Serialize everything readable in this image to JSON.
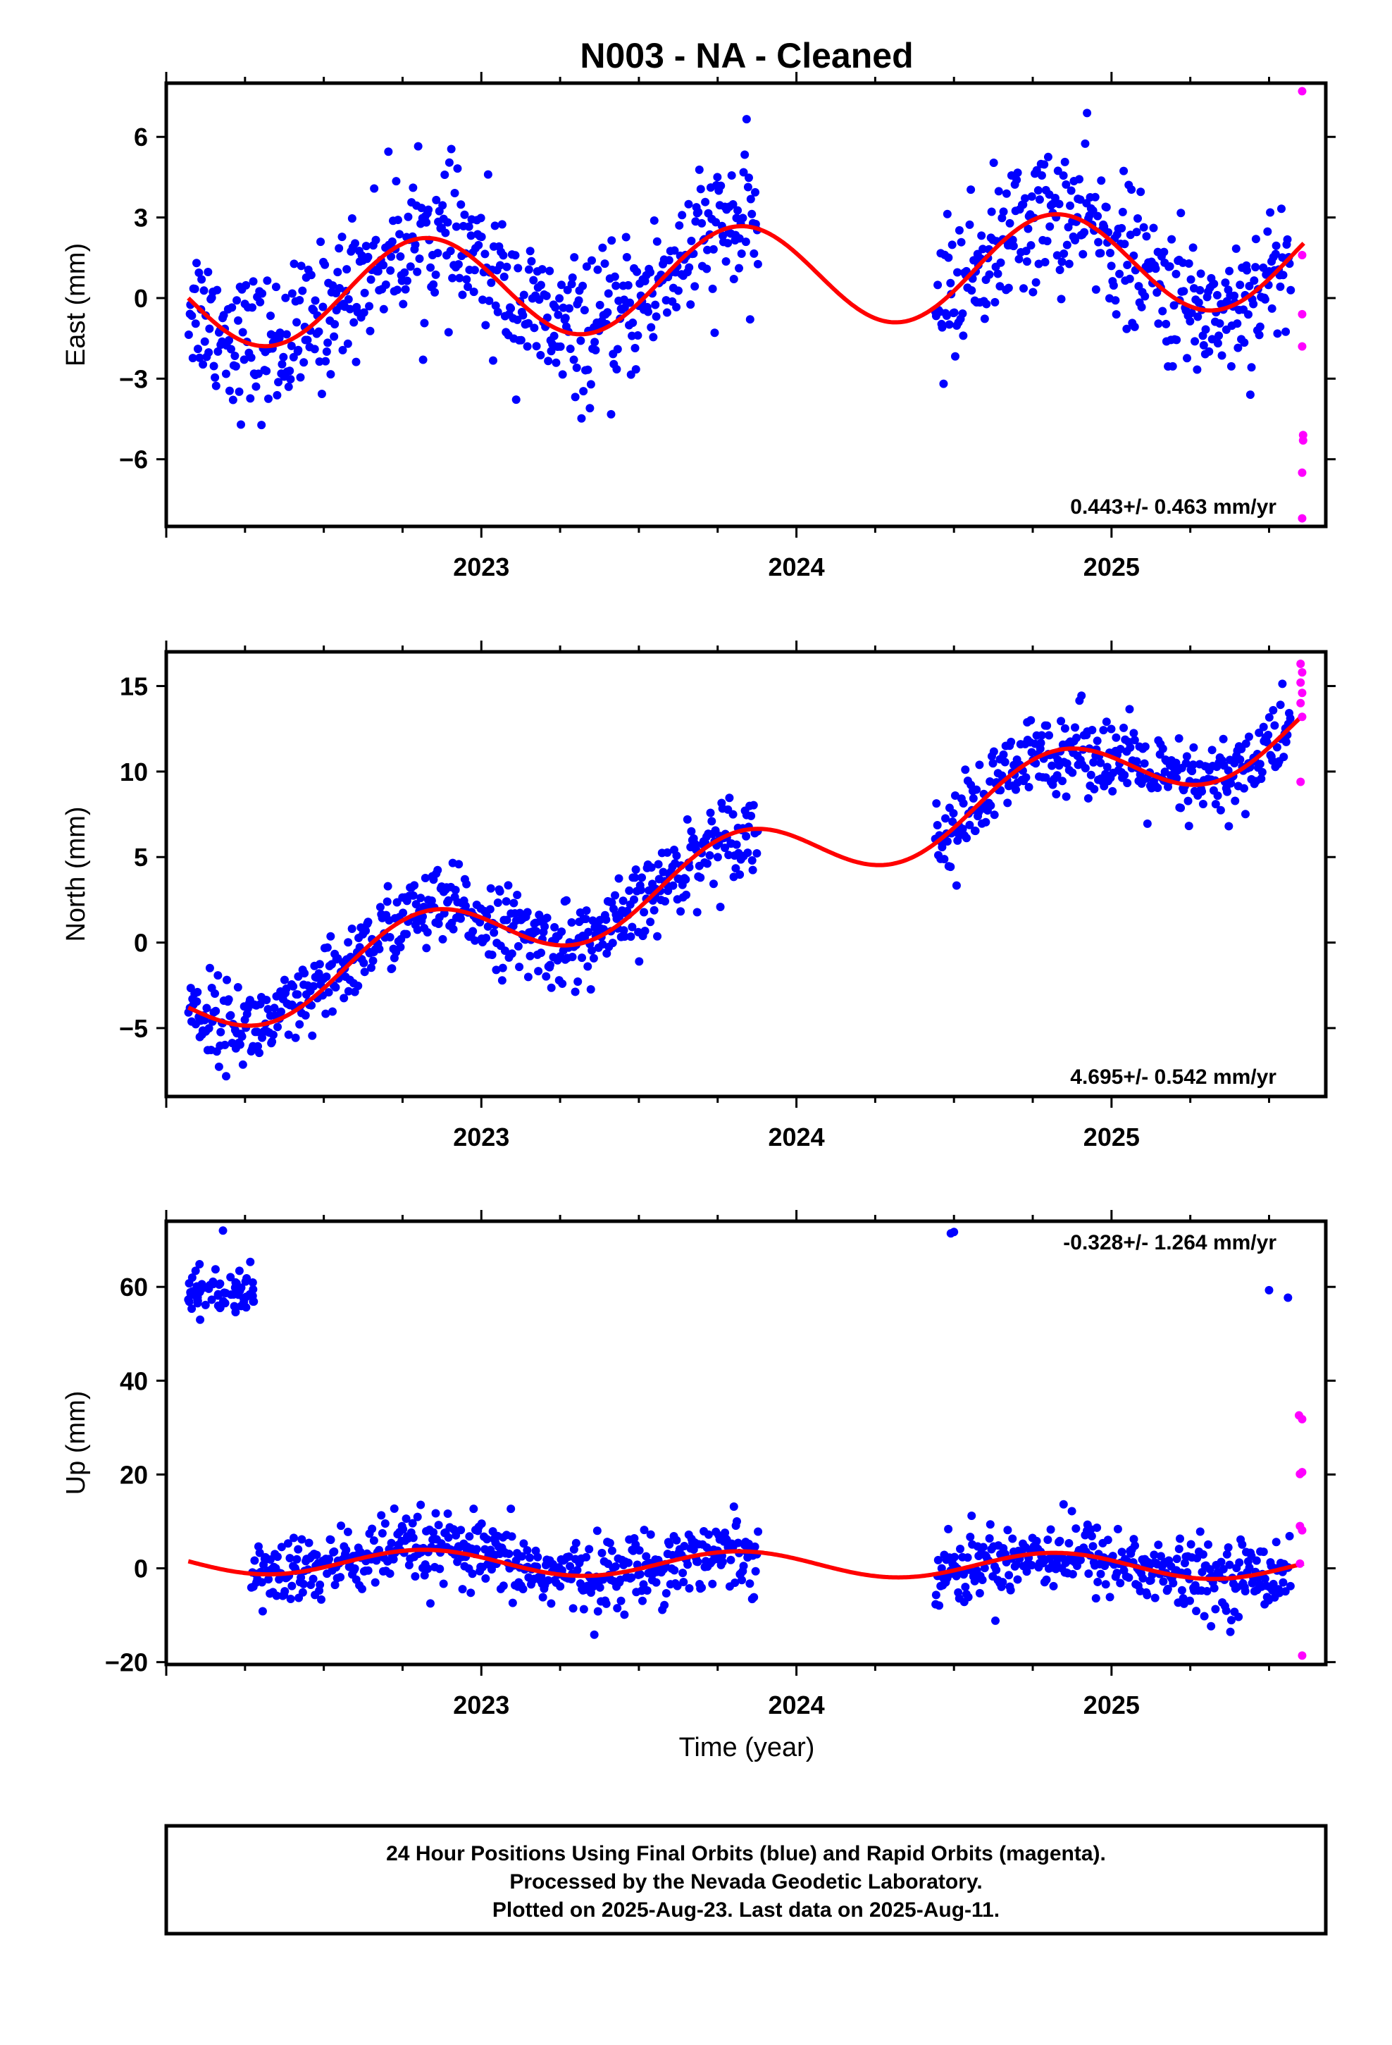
{
  "figure_title": "N003  - NA - Cleaned",
  "x_axis_label": "Time (year)",
  "footer": {
    "lines": [
      "24 Hour Positions Using Final Orbits (blue) and Rapid Orbits (magenta).",
      "Processed by the Nevada Geodetic Laboratory.",
      "Plotted on 2025-Aug-23. Last data on 2025-Aug-11."
    ]
  },
  "colors": {
    "final_orbits": "#0000ff",
    "rapid_orbits": "#ff00ff",
    "model_fit": "#ff0000",
    "frame": "#000000"
  },
  "chart_data": [
    {
      "type": "scatter",
      "component": "East",
      "ylabel": "East (mm)",
      "xlabel": "",
      "xlim": [
        2022.0,
        2025.68
      ],
      "ylim": [
        -8.5,
        8.0
      ],
      "yticks": [
        6,
        3,
        0,
        -3,
        -6
      ],
      "ytick_labels": [
        "6",
        "3",
        "0",
        "−3",
        "−6"
      ],
      "xticks": [
        2023,
        2024,
        2025
      ],
      "xtick_labels": [
        "2023",
        "2024",
        "2025"
      ],
      "rate_text": "0.443+/- 0.463 mm/yr",
      "rate_position": "bottom-right",
      "model": {
        "x0": 2022.07,
        "offset": 0.0,
        "rate": 0.443,
        "annual": [
          -1.9,
          0.0
        ],
        "semiannual": [
          0.0,
          0.0
        ],
        "breaks": []
      },
      "final_segments": [
        [
          2022.07,
          2023.88
        ],
        [
          2024.44,
          2025.57
        ]
      ],
      "final_noise": 1.3,
      "final_count": 920,
      "rapid_points": [
        [
          2025.605,
          7.7
        ],
        [
          2025.605,
          1.6
        ],
        [
          2025.605,
          -0.6
        ],
        [
          2025.605,
          -1.8
        ],
        [
          2025.608,
          -5.1
        ],
        [
          2025.608,
          -5.3
        ],
        [
          2025.605,
          -6.5
        ],
        [
          2025.605,
          -8.2
        ]
      ]
    },
    {
      "type": "scatter",
      "component": "North",
      "ylabel": "North (mm)",
      "xlabel": "",
      "xlim": [
        2022.0,
        2025.68
      ],
      "ylim": [
        -9.0,
        17.0
      ],
      "yticks": [
        15,
        10,
        5,
        0,
        -5
      ],
      "ytick_labels": [
        "15",
        "10",
        "5",
        "0",
        "−5"
      ],
      "xticks": [
        2023,
        2024,
        2025
      ],
      "xtick_labels": [
        "2023",
        "2024",
        "2025"
      ],
      "rate_text": "4.695+/- 0.542 mm/yr",
      "rate_position": "bottom-right",
      "model": {
        "x0": 2022.07,
        "offset": -3.8,
        "rate": 4.695,
        "annual": [
          -2.1,
          0.0
        ],
        "semiannual": [
          0.0,
          0.0
        ],
        "breaks": []
      },
      "final_segments": [
        [
          2022.07,
          2023.88
        ],
        [
          2024.44,
          2025.57
        ]
      ],
      "final_noise": 1.2,
      "final_count": 920,
      "rapid_points": [
        [
          2025.6,
          16.3
        ],
        [
          2025.605,
          15.8
        ],
        [
          2025.6,
          15.2
        ],
        [
          2025.605,
          14.6
        ],
        [
          2025.6,
          14.0
        ],
        [
          2025.605,
          13.2
        ],
        [
          2025.6,
          9.4
        ]
      ]
    },
    {
      "type": "scatter",
      "component": "Up",
      "ylabel": "Up (mm)",
      "xlabel": "Time (year)",
      "xlim": [
        2022.0,
        2025.68
      ],
      "ylim": [
        -20.5,
        74.0
      ],
      "yticks": [
        60,
        40,
        20,
        0,
        -20
      ],
      "ytick_labels": [
        "60",
        "40",
        "20",
        "0",
        "−20"
      ],
      "xticks": [
        2023,
        2024,
        2025
      ],
      "xtick_labels": [
        "2023",
        "2024",
        "2025"
      ],
      "rate_text": "-0.328+/- 1.264 mm/yr",
      "rate_position": "top-right",
      "model": {
        "x0": 2022.07,
        "offset": 1.5,
        "rate": -0.328,
        "annual": [
          -2.7,
          0.0
        ],
        "semiannual": [
          0.0,
          0.0
        ],
        "breaks": []
      },
      "final_segments": [
        [
          2022.27,
          2023.88
        ],
        [
          2024.44,
          2025.57
        ]
      ],
      "final_noise": 3.8,
      "final_count": 860,
      "outlier_cluster": {
        "x_range": [
          2022.07,
          2022.28
        ],
        "center": 58.5,
        "spread": 2.6,
        "count": 70
      },
      "extra_final_points": [
        [
          2022.18,
          72.0
        ],
        [
          2024.49,
          71.4
        ],
        [
          2024.5,
          71.7
        ],
        [
          2025.5,
          59.3
        ],
        [
          2025.56,
          57.7
        ]
      ],
      "rapid_points": [
        [
          2025.595,
          32.6
        ],
        [
          2025.605,
          31.8
        ],
        [
          2025.598,
          20.1
        ],
        [
          2025.605,
          20.5
        ],
        [
          2025.598,
          9.0
        ],
        [
          2025.605,
          8.1
        ],
        [
          2025.598,
          1.0
        ],
        [
          2025.605,
          -18.6
        ]
      ]
    }
  ]
}
